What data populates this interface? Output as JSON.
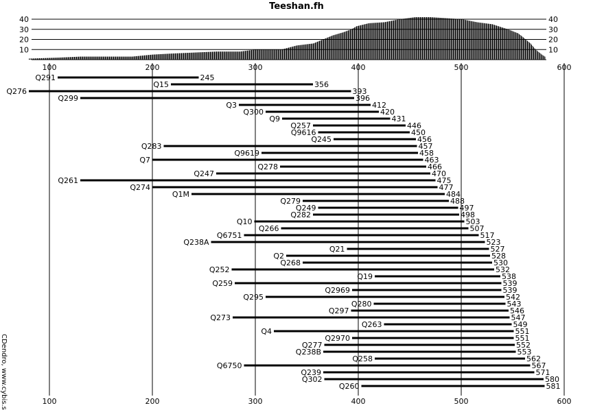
{
  "chart_data": {
    "type": "bar",
    "title": "Teeshan.fh",
    "credit": "CDendro, www.cybis.se",
    "x_axis": {
      "range": [
        80,
        580
      ],
      "ticks": [
        100,
        200,
        300,
        400,
        500,
        600
      ],
      "tick_labels": [
        "100",
        "200",
        "300",
        "400",
        "500",
        "600"
      ]
    },
    "coverage_axis": {
      "range": [
        0,
        40
      ],
      "ticks": [
        10,
        20,
        30,
        40
      ],
      "tick_labels": [
        "10",
        "20",
        "30",
        "40"
      ]
    },
    "coverage_profile": [
      [
        80,
        1
      ],
      [
        108,
        2
      ],
      [
        130,
        3
      ],
      [
        180,
        3
      ],
      [
        200,
        5
      ],
      [
        218,
        6
      ],
      [
        240,
        7
      ],
      [
        262,
        8
      ],
      [
        285,
        8
      ],
      [
        300,
        10
      ],
      [
        325,
        10
      ],
      [
        340,
        14
      ],
      [
        356,
        16
      ],
      [
        375,
        24
      ],
      [
        385,
        27
      ],
      [
        393,
        30
      ],
      [
        398,
        33
      ],
      [
        410,
        36
      ],
      [
        425,
        37
      ],
      [
        440,
        40
      ],
      [
        455,
        42
      ],
      [
        470,
        42
      ],
      [
        485,
        41
      ],
      [
        500,
        40
      ],
      [
        515,
        37
      ],
      [
        530,
        35
      ],
      [
        545,
        30
      ],
      [
        555,
        26
      ],
      [
        560,
        22
      ],
      [
        567,
        16
      ],
      [
        572,
        10
      ],
      [
        578,
        5
      ],
      [
        581,
        3
      ]
    ],
    "series": [
      {
        "name": "Q291",
        "start": 108,
        "end": 245
      },
      {
        "name": "Q15",
        "start": 218,
        "end": 356
      },
      {
        "name": "Q276",
        "start": 80,
        "end": 393
      },
      {
        "name": "Q299",
        "start": 130,
        "end": 396
      },
      {
        "name": "Q3",
        "start": 284,
        "end": 412
      },
      {
        "name": "Q300",
        "start": 310,
        "end": 420
      },
      {
        "name": "Q9",
        "start": 326,
        "end": 431
      },
      {
        "name": "Q257",
        "start": 356,
        "end": 446
      },
      {
        "name": "Q9616",
        "start": 361,
        "end": 450
      },
      {
        "name": "Q245",
        "start": 376,
        "end": 456
      },
      {
        "name": "Q283",
        "start": 211,
        "end": 457
      },
      {
        "name": "Q9619",
        "start": 306,
        "end": 458
      },
      {
        "name": "Q7",
        "start": 200,
        "end": 463
      },
      {
        "name": "Q278",
        "start": 324,
        "end": 466
      },
      {
        "name": "Q247",
        "start": 262,
        "end": 470
      },
      {
        "name": "Q261",
        "start": 130,
        "end": 475
      },
      {
        "name": "Q274",
        "start": 200,
        "end": 477
      },
      {
        "name": "Q1M",
        "start": 238,
        "end": 484
      },
      {
        "name": "Q279",
        "start": 346,
        "end": 488
      },
      {
        "name": "Q249",
        "start": 361,
        "end": 497
      },
      {
        "name": "Q282",
        "start": 356,
        "end": 498
      },
      {
        "name": "Q10",
        "start": 299,
        "end": 503
      },
      {
        "name": "Q266",
        "start": 325,
        "end": 507
      },
      {
        "name": "Q6751",
        "start": 289,
        "end": 517
      },
      {
        "name": "Q238A",
        "start": 257,
        "end": 523
      },
      {
        "name": "Q21",
        "start": 389,
        "end": 527
      },
      {
        "name": "Q2",
        "start": 330,
        "end": 528
      },
      {
        "name": "Q268",
        "start": 346,
        "end": 530
      },
      {
        "name": "Q252",
        "start": 277,
        "end": 532
      },
      {
        "name": "Q19",
        "start": 416,
        "end": 538
      },
      {
        "name": "Q259",
        "start": 280,
        "end": 539
      },
      {
        "name": "Q2969",
        "start": 394,
        "end": 539
      },
      {
        "name": "Q295",
        "start": 310,
        "end": 542
      },
      {
        "name": "Q280",
        "start": 415,
        "end": 543
      },
      {
        "name": "Q297",
        "start": 393,
        "end": 546
      },
      {
        "name": "Q273",
        "start": 278,
        "end": 547
      },
      {
        "name": "Q263",
        "start": 425,
        "end": 549
      },
      {
        "name": "Q4",
        "start": 318,
        "end": 551
      },
      {
        "name": "Q2970",
        "start": 394,
        "end": 551
      },
      {
        "name": "Q277",
        "start": 367,
        "end": 552
      },
      {
        "name": "Q238B",
        "start": 366,
        "end": 553
      },
      {
        "name": "Q258",
        "start": 416,
        "end": 562
      },
      {
        "name": "Q6750",
        "start": 289,
        "end": 567
      },
      {
        "name": "Q239",
        "start": 366,
        "end": 571
      },
      {
        "name": "Q302",
        "start": 367,
        "end": 580
      },
      {
        "name": "Q260",
        "start": 403,
        "end": 581
      }
    ]
  }
}
